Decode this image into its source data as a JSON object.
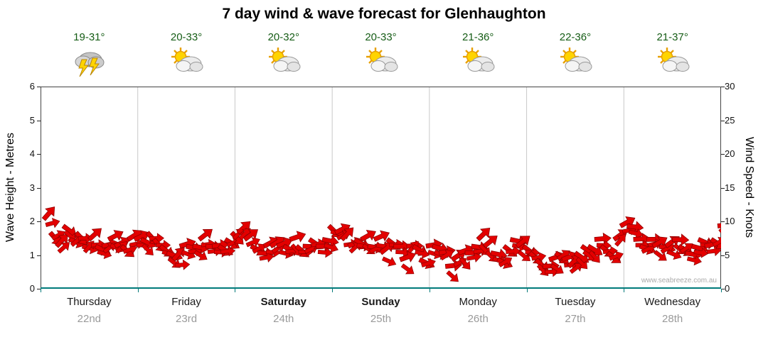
{
  "title": "7 day wind & wave forecast for Glenhaughton",
  "watermark": "www.seabreeze.com.au",
  "colors": {
    "arrow_fill": "#e30000",
    "arrow_stroke": "#8f0000",
    "baseline": "#007a7a",
    "grid": "#c8c8c8",
    "border": "#444444",
    "temperature": "#155c15",
    "date": "#9a9a9a"
  },
  "days": [
    {
      "name": "Thursday",
      "date": "22nd",
      "temp": "19-31°",
      "icon": "storm",
      "bold": false
    },
    {
      "name": "Friday",
      "date": "23rd",
      "temp": "20-33°",
      "icon": "sun-cloud",
      "bold": false
    },
    {
      "name": "Saturday",
      "date": "24th",
      "temp": "20-32°",
      "icon": "sun-cloud",
      "bold": true
    },
    {
      "name": "Sunday",
      "date": "25th",
      "temp": "20-33°",
      "icon": "sun-cloud",
      "bold": true
    },
    {
      "name": "Monday",
      "date": "26th",
      "temp": "21-36°",
      "icon": "sun-cloud",
      "bold": false
    },
    {
      "name": "Tuesday",
      "date": "27th",
      "temp": "22-36°",
      "icon": "sun-cloud",
      "bold": false
    },
    {
      "name": "Wednesday",
      "date": "28th",
      "temp": "21-37°",
      "icon": "sun-cloud",
      "bold": false
    }
  ],
  "axes": {
    "left_label": "Wave Height - Metres",
    "right_label": "Wind Speed - Knots",
    "left_ticks": [
      0,
      1,
      2,
      3,
      4,
      5,
      6
    ],
    "right_ticks": [
      0,
      5,
      10,
      15,
      20,
      25,
      30
    ]
  },
  "chart_data": {
    "type": "line",
    "title": "7 day wind & wave forecast for Glenhaughton",
    "xlabel": "",
    "ylabel_left": "Wave Height - Metres",
    "ylabel_right": "Wind Speed - Knots",
    "ylim_left": [
      0,
      6
    ],
    "ylim_right": [
      0,
      30
    ],
    "grid": "vertical day separators only",
    "legend": "none",
    "marker_style": "red wind-direction arrows",
    "categories": [
      "Thursday 22nd",
      "Friday 23rd",
      "Saturday 24th",
      "Sunday 25th",
      "Monday 26th",
      "Tuesday 27th",
      "Wednesday 28th"
    ],
    "points_per_day": 15,
    "series": [
      {
        "name": "Wind Speed (knots)",
        "axis": "right",
        "values": [
          10,
          8,
          6,
          9,
          7,
          8,
          6,
          7,
          6,
          6,
          7,
          6,
          6,
          7,
          7,
          7,
          8,
          7,
          6,
          5,
          4,
          6,
          6,
          6,
          7,
          6,
          6,
          6,
          7,
          8,
          8,
          7,
          6,
          5,
          6,
          6,
          6,
          6,
          7,
          6,
          6,
          7,
          6,
          7,
          9,
          8,
          7,
          6,
          7,
          7,
          6,
          7,
          5,
          7,
          6,
          4,
          6,
          6,
          4,
          6,
          6,
          5,
          3,
          4,
          5,
          5,
          6,
          7,
          6,
          5,
          4,
          6,
          7,
          6,
          6,
          5,
          4,
          3,
          4,
          5,
          4,
          3,
          5,
          6,
          6,
          7,
          6,
          5,
          7,
          9,
          9,
          7,
          6,
          7,
          6,
          6,
          6,
          7,
          6,
          5,
          6,
          7,
          6,
          7,
          9
        ]
      }
    ]
  }
}
